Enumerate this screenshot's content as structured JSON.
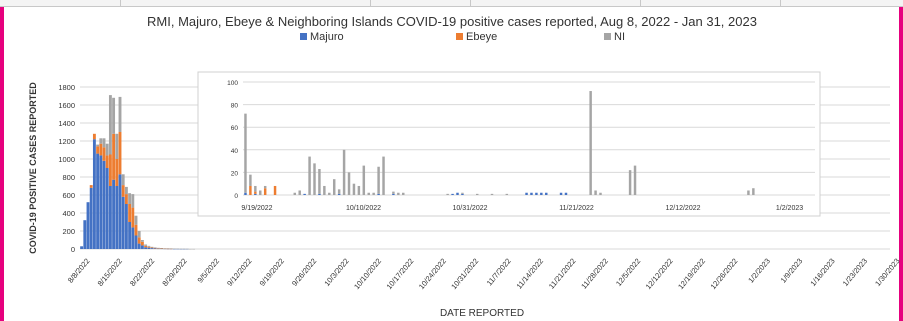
{
  "chart_data": [
    {
      "type": "bar",
      "title": "RMI, Majuro, Ebeye & Neighboring Islands COVID-19 positive cases reported, Aug 8, 2022 - Jan 31, 2023",
      "xlabel": "DATE REPORTED",
      "ylabel": "COVID-19 POSITIVE CASES REPORTED",
      "ylim": [
        0,
        1800
      ],
      "y_ticks": [
        "1800",
        "1600",
        "1400",
        "1200",
        "1000",
        "800",
        "600",
        "400",
        "200",
        "0"
      ],
      "x_tick_labels": [
        "8/8/2022",
        "8/15/2022",
        "8/22/2022",
        "8/29/2022",
        "9/5/2022",
        "9/12/2022",
        "9/19/2022",
        "9/26/2022",
        "10/3/2022",
        "10/10/2022",
        "10/17/2022",
        "10/24/2022",
        "10/31/2022",
        "11/7/2022",
        "11/14/2022",
        "11/21/2022",
        "11/28/2022",
        "12/5/2022",
        "12/12/2022",
        "12/19/2022",
        "12/26/2022",
        "1/2/2023",
        "1/9/2023",
        "1/16/2023",
        "1/23/2023",
        "1/30/2023"
      ],
      "legend_position": "top",
      "grid": true,
      "series": [
        {
          "name": "Majuro",
          "color": "#4472c4",
          "values": [
            30,
            320,
            520,
            680,
            1220,
            1060,
            1040,
            980,
            900,
            700,
            770,
            700,
            830,
            580,
            500,
            300,
            240,
            150,
            60,
            40,
            20,
            15,
            10,
            8,
            5,
            5,
            4,
            3,
            3,
            2,
            2,
            1,
            1,
            1,
            0,
            0,
            0,
            0,
            0,
            0,
            0,
            0,
            0,
            0,
            0,
            0,
            0,
            0,
            0,
            0,
            0
          ]
        },
        {
          "name": "Ebeye",
          "color": "#ed7d31",
          "values": [
            0,
            0,
            0,
            30,
            60,
            80,
            130,
            150,
            140,
            350,
            510,
            300,
            470,
            130,
            110,
            200,
            220,
            120,
            70,
            40,
            15,
            10,
            6,
            4,
            3,
            2,
            1,
            1,
            1,
            0,
            0,
            0,
            0,
            0,
            0,
            0,
            0,
            0,
            0,
            0,
            0,
            0,
            0,
            0,
            0,
            0,
            0,
            0,
            0,
            0,
            0
          ]
        },
        {
          "name": "NI",
          "color": "#a5a5a5",
          "values": [
            0,
            0,
            0,
            0,
            0,
            20,
            60,
            100,
            130,
            660,
            400,
            280,
            390,
            120,
            80,
            120,
            150,
            100,
            70,
            20,
            15,
            10,
            8,
            6,
            5,
            4,
            3,
            4,
            3,
            3,
            2,
            2,
            2,
            1,
            1,
            1,
            0,
            0,
            0,
            0,
            0,
            0,
            0,
            0,
            0,
            0,
            0,
            0,
            0,
            0,
            0
          ]
        }
      ]
    },
    {
      "type": "bar",
      "title": "",
      "ylim": [
        0,
        100
      ],
      "y_ticks": [
        "100",
        "80",
        "60",
        "40",
        "20",
        "0"
      ],
      "x_tick_labels": [
        "9/19/2022",
        "10/10/2022",
        "10/31/2022",
        "11/21/2022",
        "12/12/2022",
        "1/2/2023"
      ],
      "grid": true,
      "series": [
        {
          "name": "Majuro",
          "color": "#4472c4",
          "values": [
            2,
            0,
            1,
            0,
            0,
            0,
            0,
            0,
            0,
            0,
            0,
            0,
            1,
            0,
            0,
            1,
            0,
            0,
            0,
            1,
            0,
            0,
            0,
            0,
            0,
            0,
            0,
            1,
            0,
            0,
            1,
            0,
            0,
            0,
            0,
            0,
            0,
            0,
            0,
            0,
            0,
            0,
            1,
            2,
            1,
            0,
            0,
            0,
            0,
            0,
            0,
            0,
            0,
            0,
            0,
            0,
            0,
            2,
            2,
            2,
            2,
            2,
            0,
            0,
            2,
            2,
            0,
            0,
            0,
            0,
            0,
            0,
            0,
            0,
            0,
            0,
            0,
            0,
            0,
            0,
            0,
            0,
            0,
            0,
            0,
            0,
            0,
            0,
            0,
            0,
            0,
            0,
            0,
            0,
            0,
            0,
            0,
            0,
            0,
            0,
            0,
            0,
            0,
            0,
            0,
            0,
            0,
            0,
            0,
            0,
            0,
            0,
            0,
            0,
            0,
            0
          ]
        },
        {
          "name": "Ebeye",
          "color": "#ed7d31",
          "values": [
            0,
            8,
            2,
            0,
            6,
            0,
            8,
            0,
            0,
            0,
            0,
            0,
            0,
            0,
            0,
            0,
            0,
            0,
            0,
            0,
            0,
            0,
            0,
            0,
            0,
            0,
            0,
            0,
            0,
            0,
            0,
            0,
            0,
            0,
            0,
            0,
            0,
            0,
            0,
            0,
            0,
            0,
            0,
            0,
            0,
            0,
            0,
            0,
            0,
            0,
            0,
            0,
            0,
            0,
            0,
            0,
            0,
            0,
            0,
            0,
            0,
            0,
            0,
            0,
            0,
            0,
            0,
            0,
            0,
            0,
            0,
            0,
            0,
            0,
            0,
            0,
            0,
            0,
            0,
            0,
            0,
            0,
            0,
            0,
            0,
            0,
            0,
            0,
            0,
            0,
            0,
            0,
            0,
            0,
            0,
            0,
            0,
            0,
            0,
            0,
            0,
            0,
            0,
            0,
            0,
            0,
            0,
            0,
            0,
            0,
            0,
            0,
            0,
            0,
            0,
            0
          ]
        },
        {
          "name": "NI",
          "color": "#a5a5a5",
          "values": [
            70,
            10,
            5,
            4,
            2,
            0,
            0,
            0,
            0,
            0,
            2,
            4,
            0,
            34,
            28,
            22,
            8,
            2,
            14,
            4,
            40,
            20,
            10,
            8,
            26,
            2,
            2,
            24,
            34,
            0,
            2,
            2,
            2,
            0,
            0,
            0,
            0,
            0,
            0,
            0,
            0,
            1,
            0,
            0,
            1,
            0,
            0,
            1,
            0,
            0,
            1,
            0,
            0,
            1,
            0,
            0,
            0,
            0,
            0,
            0,
            0,
            0,
            0,
            0,
            0,
            0,
            0,
            0,
            0,
            0,
            92,
            4,
            2,
            0,
            0,
            0,
            0,
            0,
            22,
            26,
            0,
            0,
            0,
            0,
            0,
            0,
            0,
            0,
            0,
            0,
            0,
            0,
            0,
            0,
            0,
            0,
            0,
            0,
            0,
            0,
            0,
            0,
            4,
            6,
            0,
            0,
            0,
            0,
            0,
            0,
            0,
            0,
            0,
            0,
            0,
            0
          ]
        }
      ]
    }
  ]
}
